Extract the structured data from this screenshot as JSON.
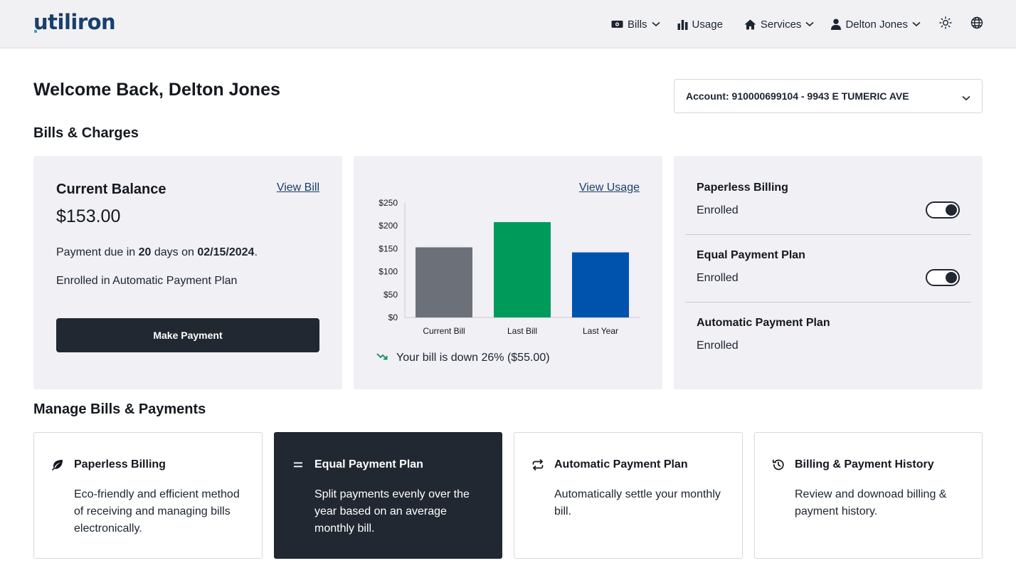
{
  "header": {
    "logo_text": "utiliron",
    "nav": {
      "bills": "Bills",
      "usage": "Usage",
      "services": "Services",
      "user": "Delton Jones"
    }
  },
  "main": {
    "welcome": "Welcome Back, Delton Jones",
    "account_selector": "Account: 910000699104 - 9943 E TUMERIC AVE",
    "bills_section_title": "Bills & Charges",
    "manage_section_title": "Manage Bills & Payments"
  },
  "balance_card": {
    "title": "Current Balance",
    "view_bill_link": "View Bill",
    "amount": "$153.00",
    "due_prefix": "Payment due in ",
    "due_days": "20",
    "due_mid": " days on ",
    "due_date": "02/15/2024",
    "due_suffix": ".",
    "auto_pay_text": "Enrolled in Automatic Payment Plan",
    "pay_button": "Make Payment"
  },
  "usage_card": {
    "view_usage_link": "View Usage",
    "trend_text": "Your bill is down 26% ($55.00)",
    "trend_color": "#0a8f5a"
  },
  "chart_data": {
    "type": "bar",
    "categories": [
      "Current Bill",
      "Last Bill",
      "Last Year"
    ],
    "values": [
      153,
      208,
      142
    ],
    "colors": [
      "#6b7079",
      "#009b5a",
      "#0053ad"
    ],
    "yticks": [
      "$0",
      "$50",
      "$100",
      "$150",
      "$200",
      "$250"
    ],
    "ylim": [
      0,
      250
    ],
    "title": "",
    "xlabel": "",
    "ylabel": "",
    "grid": false
  },
  "programs_card": {
    "items": [
      {
        "title": "Paperless Billing",
        "status": "Enrolled",
        "toggle": true
      },
      {
        "title": "Equal Payment Plan",
        "status": "Enrolled",
        "toggle": true
      },
      {
        "title": "Automatic Payment Plan",
        "status": "Enrolled",
        "toggle": false
      }
    ]
  },
  "manage_tiles": [
    {
      "icon": "leaf-icon",
      "title": "Paperless Billing",
      "description": "Eco-friendly and efficient method of receiving and managing bills electronically."
    },
    {
      "icon": "equals-icon",
      "title": "Equal Payment Plan",
      "description": "Split payments evenly over the year based on an average monthly bill.",
      "selected": true
    },
    {
      "icon": "repeat-icon",
      "title": "Automatic Payment Plan",
      "description": "Automatically settle your monthly bill."
    },
    {
      "icon": "history-icon",
      "title": "Billing & Payment History",
      "description": "Review and downoad billing & payment history."
    }
  ]
}
